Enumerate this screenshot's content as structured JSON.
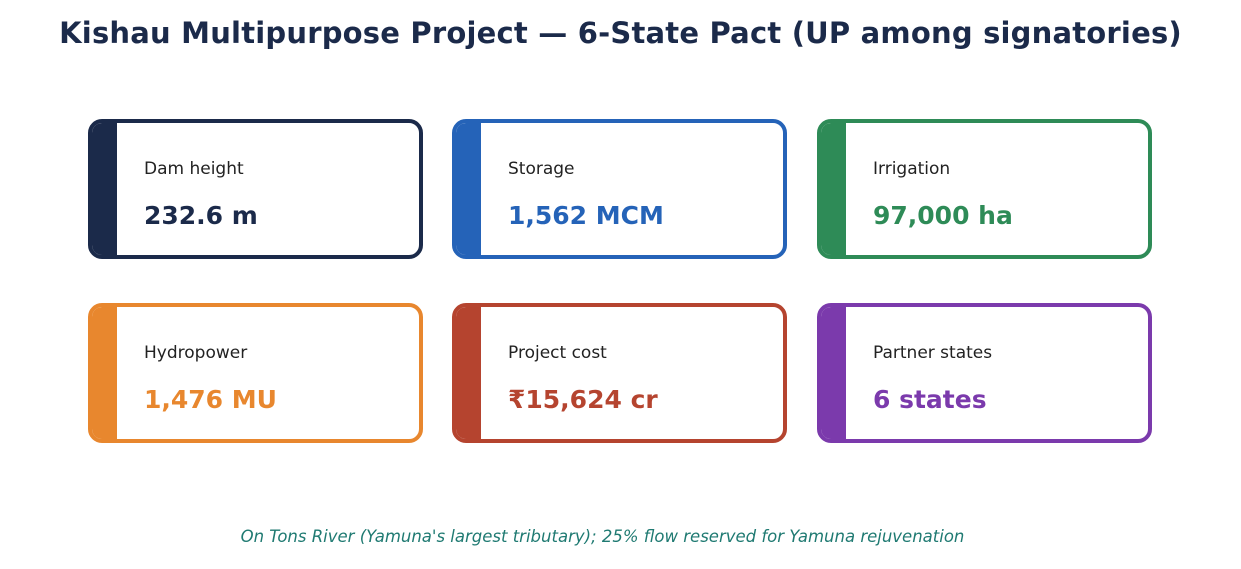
{
  "title": "Kishau Multipurpose Project — 6-State Pact (UP among signatories)",
  "cards": [
    {
      "label": "Dam height",
      "value": "232.6 m",
      "color": "#1b2a4a"
    },
    {
      "label": "Storage",
      "value": "1,562 MCM",
      "color": "#2563b8"
    },
    {
      "label": "Irrigation",
      "value": "97,000 ha",
      "color": "#2e8b57"
    },
    {
      "label": "Hydropower",
      "value": "1,476 MU",
      "color": "#e8872e"
    },
    {
      "label": "Project cost",
      "value": "₹15,624 cr",
      "color": "#b5442f"
    },
    {
      "label": "Partner states",
      "value": "6 states",
      "color": "#7b3aac"
    }
  ],
  "footer": "On Tons River (Yamuna's largest tributary); 25% flow reserved for Yamuna rejuvenation"
}
